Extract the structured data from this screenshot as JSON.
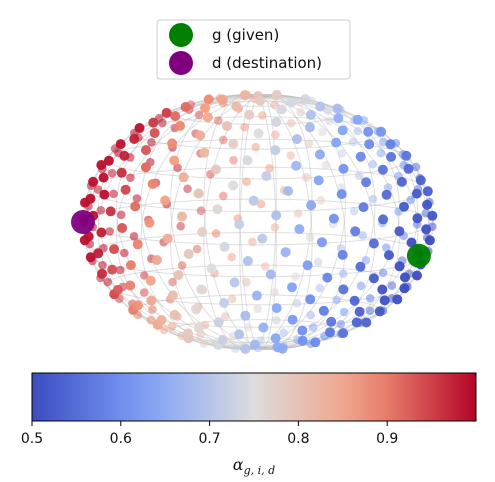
{
  "chart_data": {
    "type": "scatter",
    "subtype": "3d-sphere-point-cloud",
    "title": "",
    "color_scale": {
      "name": "coolwarm",
      "min": 0.5,
      "max": 1.0,
      "ticks": [
        0.5,
        0.6,
        0.7,
        0.8,
        0.9
      ],
      "tick_labels": [
        "0.5",
        "0.6",
        "0.7",
        "0.8",
        "0.9"
      ],
      "label": "α_{g,i,d}",
      "label_main": "α",
      "label_sub": "g, i, d"
    },
    "legend": {
      "placement": "top-center",
      "entries": [
        {
          "label": "g (given)",
          "color": "#008000"
        },
        {
          "label": "d (destination)",
          "color": "#800080"
        }
      ]
    },
    "special_points": [
      {
        "name": "g",
        "color": "#008000",
        "azimuth_deg": 70,
        "elevation_deg": -12
      },
      {
        "name": "d",
        "color": "#800080",
        "azimuth_deg": -90,
        "elevation_deg": 0
      }
    ],
    "points": {
      "count": 380,
      "distribution": "fibonacci-sphere",
      "value_range": [
        0.5,
        1.0
      ]
    }
  }
}
